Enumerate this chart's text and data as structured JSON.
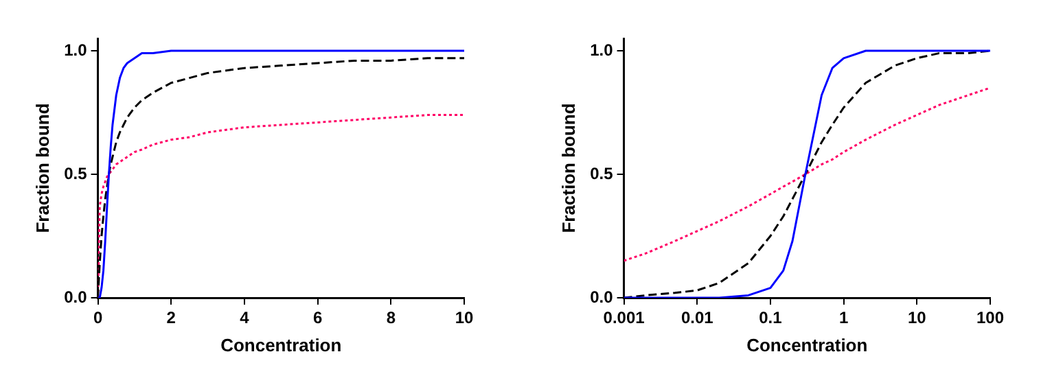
{
  "chart_data": [
    {
      "type": "line",
      "xlabel": "Concentration",
      "ylabel": "Fraction bound",
      "x": [
        0,
        0.05,
        0.1,
        0.15,
        0.2,
        0.25,
        0.3,
        0.35,
        0.4,
        0.5,
        0.6,
        0.7,
        0.8,
        1,
        1.2,
        1.5,
        2,
        2.5,
        3,
        4,
        5,
        6,
        7,
        8,
        9,
        10
      ],
      "xlim": [
        0,
        10
      ],
      "xticks": [
        0,
        2,
        4,
        6,
        8,
        10
      ],
      "ylim": [
        0,
        1.05
      ],
      "yticks": [
        {
          "value": 0,
          "label": "0.0"
        },
        {
          "value": 0.5,
          "label": "0.5"
        },
        {
          "value": 1,
          "label": "1.0"
        }
      ],
      "legend": false,
      "series": [
        {
          "color": "#0000ff",
          "line_style": "solid",
          "values": [
            0,
            0,
            0.04,
            0.11,
            0.23,
            0.37,
            0.5,
            0.61,
            0.7,
            0.82,
            0.89,
            0.93,
            0.95,
            0.97,
            0.99,
            0.99,
            1,
            1,
            1,
            1,
            1,
            1,
            1,
            1,
            1,
            1
          ]
        },
        {
          "color": "#000000",
          "line_style": "dashed",
          "values": [
            0,
            0.14,
            0.25,
            0.33,
            0.4,
            0.45,
            0.5,
            0.54,
            0.57,
            0.63,
            0.67,
            0.7,
            0.73,
            0.77,
            0.8,
            0.83,
            0.87,
            0.89,
            0.91,
            0.93,
            0.94,
            0.95,
            0.96,
            0.96,
            0.97,
            0.97
          ]
        },
        {
          "color": "#ff0066",
          "line_style": "dotted",
          "values": [
            0,
            0.37,
            0.42,
            0.45,
            0.47,
            0.49,
            0.5,
            0.51,
            0.52,
            0.54,
            0.55,
            0.56,
            0.57,
            0.59,
            0.6,
            0.62,
            0.64,
            0.65,
            0.67,
            0.69,
            0.7,
            0.71,
            0.72,
            0.73,
            0.74,
            0.74
          ]
        }
      ]
    },
    {
      "type": "line",
      "xlabel": "Concentration",
      "ylabel": "Fraction bound",
      "log": "x",
      "x": [
        0.001,
        0.002,
        0.005,
        0.01,
        0.02,
        0.05,
        0.1,
        0.15,
        0.2,
        0.3,
        0.5,
        0.7,
        1,
        2,
        5,
        10,
        20,
        50,
        100
      ],
      "xlim": [
        0.001,
        100
      ],
      "xticks": [
        0.001,
        0.01,
        0.1,
        1,
        10,
        100
      ],
      "ylim": [
        0,
        1.05
      ],
      "yticks": [
        {
          "value": 0,
          "label": "0.0"
        },
        {
          "value": 0.5,
          "label": "0.5"
        },
        {
          "value": 1,
          "label": "1.0"
        }
      ],
      "legend": false,
      "series": [
        {
          "color": "#0000ff",
          "line_style": "solid",
          "values": [
            0,
            0,
            0,
            0,
            0,
            0.01,
            0.04,
            0.11,
            0.23,
            0.5,
            0.82,
            0.93,
            0.97,
            1,
            1,
            1,
            1,
            1,
            1
          ]
        },
        {
          "color": "#000000",
          "line_style": "dashed",
          "values": [
            0,
            0.01,
            0.02,
            0.03,
            0.06,
            0.14,
            0.25,
            0.33,
            0.4,
            0.5,
            0.63,
            0.7,
            0.77,
            0.87,
            0.94,
            0.97,
            0.99,
            0.99,
            1
          ]
        },
        {
          "color": "#ff0066",
          "line_style": "dotted",
          "values": [
            0.15,
            0.18,
            0.23,
            0.27,
            0.31,
            0.37,
            0.42,
            0.45,
            0.47,
            0.5,
            0.54,
            0.56,
            0.59,
            0.64,
            0.7,
            0.74,
            0.78,
            0.82,
            0.85
          ]
        }
      ]
    }
  ]
}
